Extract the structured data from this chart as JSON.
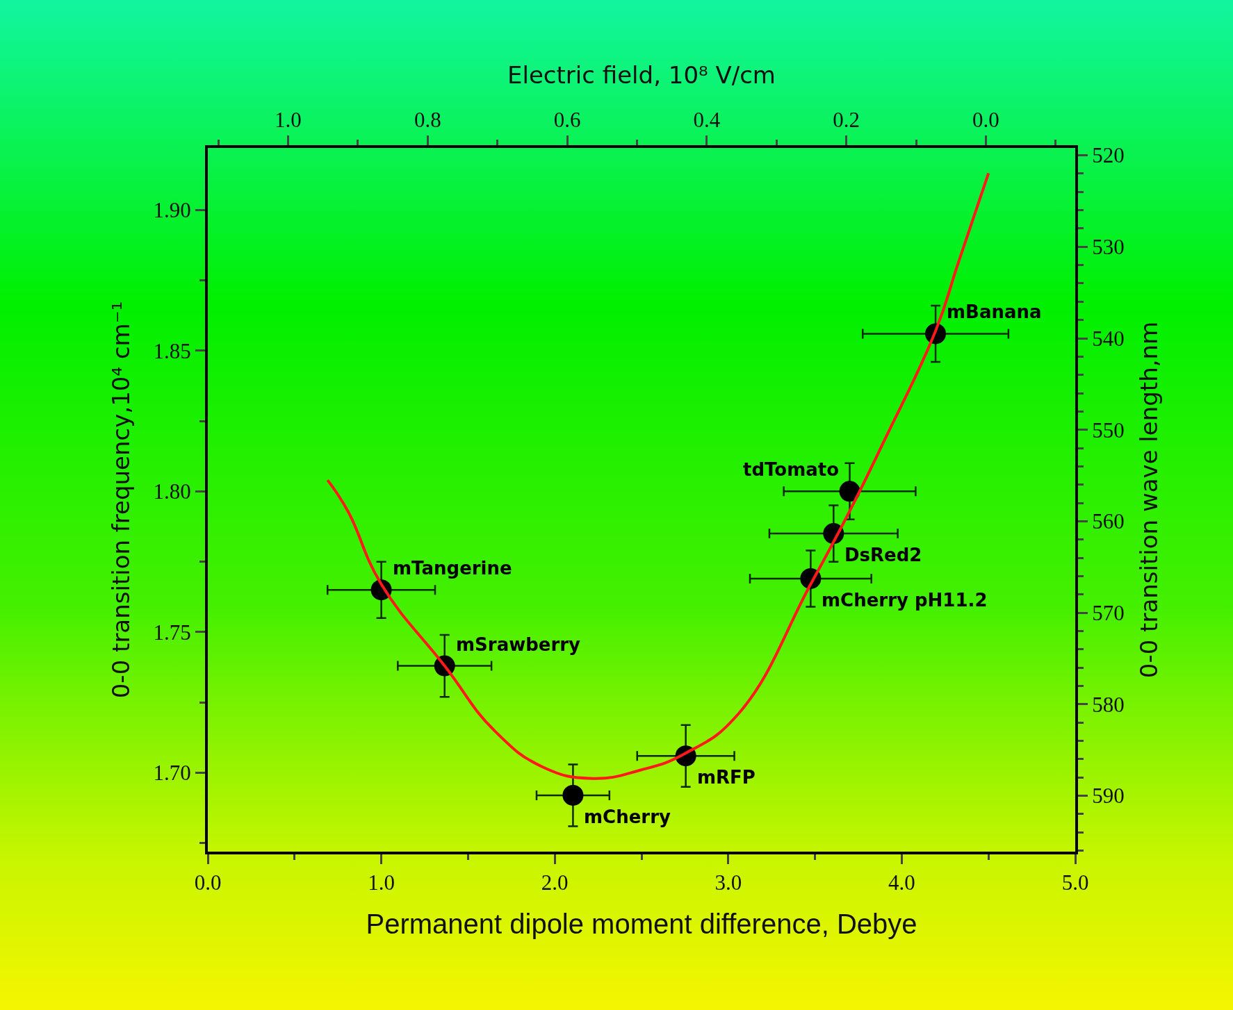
{
  "chart_data": {
    "type": "scatter",
    "xlabel": "Permanent dipole moment difference, Debye",
    "ylabel": "0-0 transition frequency,10⁴ cm⁻¹",
    "y2label": "0-0 transition wave length,nm",
    "x2label": "Electric field, 10⁸ V/cm",
    "xlim": [
      0,
      5
    ],
    "xticks": [
      {
        "value": 0,
        "label": "0.0"
      },
      {
        "value": 1,
        "label": "1.0"
      },
      {
        "value": 2,
        "label": "2.0"
      },
      {
        "value": 3,
        "label": "3.0"
      },
      {
        "value": 4,
        "label": "4.0"
      },
      {
        "value": 5,
        "label": "5.0"
      }
    ],
    "ylim": [
      1.672,
      1.922
    ],
    "yticks": [
      {
        "value": 1.7,
        "label": "1.70"
      },
      {
        "value": 1.75,
        "label": "1.75"
      },
      {
        "value": 1.8,
        "label": "1.80"
      },
      {
        "value": 1.85,
        "label": "1.85"
      },
      {
        "value": 1.9,
        "label": "1.90"
      }
    ],
    "y2lim": [
      596.1,
      519.2
    ],
    "y2ticks": [
      520,
      530,
      540,
      550,
      560,
      570,
      580,
      590
    ],
    "x2lim": [
      1.115,
      -0.128
    ],
    "x2ticks": [
      {
        "value": 1,
        "label": "1.0"
      },
      {
        "value": 0.8,
        "label": "0.8"
      },
      {
        "value": 0.6,
        "label": "0.6"
      },
      {
        "value": 0.4,
        "label": "0.4"
      },
      {
        "value": 0.2,
        "label": "0.2"
      },
      {
        "value": 0,
        "label": "0.0"
      }
    ],
    "marker": "circle",
    "series": [
      {
        "type": "scatter",
        "color": "#000000",
        "x": [
          1.0,
          1.365,
          2.105,
          2.755,
          3.475,
          3.607,
          3.7,
          4.195
        ],
        "values": [
          1.765,
          1.738,
          1.692,
          1.706,
          1.769,
          1.785,
          1.8,
          1.856
        ],
        "xerrors": [
          0.31,
          0.27,
          0.21,
          0.28,
          0.35,
          0.37,
          0.38,
          0.42
        ],
        "errors": [
          0.01,
          0.011,
          0.011,
          0.011,
          0.01,
          0.01,
          0.01,
          0.01
        ]
      },
      {
        "type": "line",
        "color": "#ff1a1a",
        "marker": "none",
        "x": [
          0.69,
          0.807,
          1.0,
          1.365,
          1.652,
          1.933,
          2.215,
          2.496,
          2.755,
          3.059,
          3.475,
          3.7,
          3.899,
          4.195,
          4.325,
          4.5
        ],
        "values": [
          1.804,
          1.793,
          1.767,
          1.738,
          1.715,
          1.702,
          1.698,
          1.701,
          1.707,
          1.721,
          1.767,
          1.793,
          1.818,
          1.857,
          1.881,
          1.913
        ]
      }
    ],
    "annotations": [
      {
        "text": "mTangerine",
        "x": 1.0,
        "y": 1.765
      },
      {
        "text": "mSrawberry",
        "x": 1.365,
        "y": 1.738
      },
      {
        "text": "mCherry",
        "x": 2.105,
        "y": 1.692
      },
      {
        "text": "mRFP",
        "x": 2.755,
        "y": 1.706
      },
      {
        "text": "mCherry pH11.2",
        "x": 3.475,
        "y": 1.769
      },
      {
        "text": "DsRed2",
        "x": 3.607,
        "y": 1.785
      },
      {
        "text": "tdTomato",
        "x": 3.7,
        "y": 1.8
      },
      {
        "text": "mBanana",
        "x": 4.195,
        "y": 1.856
      }
    ]
  }
}
